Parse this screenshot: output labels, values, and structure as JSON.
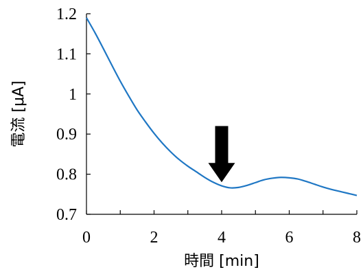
{
  "chart_data": {
    "type": "line",
    "title": "",
    "xlabel": "時間 [min]",
    "ylabel": "電流 [μA]",
    "xlim": [
      0,
      8
    ],
    "ylim": [
      0.7,
      1.2
    ],
    "xticks": [
      0,
      2,
      4,
      6,
      8
    ],
    "xtick_labels": [
      "0",
      "2",
      "4",
      "6",
      "8"
    ],
    "yticks": [
      0.7,
      0.8,
      0.9,
      1.0,
      1.1,
      1.2
    ],
    "ytick_labels": [
      "0.7",
      "0.8",
      "0.9",
      "1",
      "1.1",
      "1.2"
    ],
    "grid": false,
    "legend": "none",
    "series": [
      {
        "color": "#1f77c4",
        "x": [
          0,
          0.25,
          0.5,
          0.75,
          1.0,
          1.25,
          1.5,
          1.75,
          2.0,
          2.25,
          2.5,
          2.75,
          3.0,
          3.25,
          3.5,
          3.75,
          4.0,
          4.25,
          4.5,
          4.75,
          5.0,
          5.25,
          5.5,
          5.75,
          6.0,
          6.25,
          6.5,
          6.75,
          7.0,
          7.25,
          7.5,
          7.75,
          8.0
        ],
        "y": [
          1.19,
          1.153,
          1.113,
          1.072,
          1.032,
          0.995,
          0.96,
          0.93,
          0.902,
          0.877,
          0.855,
          0.836,
          0.82,
          0.806,
          0.792,
          0.78,
          0.771,
          0.766,
          0.767,
          0.772,
          0.779,
          0.786,
          0.79,
          0.792,
          0.791,
          0.788,
          0.782,
          0.775,
          0.768,
          0.762,
          0.757,
          0.752,
          0.747
        ]
      }
    ],
    "annotations": [
      {
        "type": "arrow",
        "direction": "down",
        "x": 4.0,
        "y_top": 0.92,
        "y_tip": 0.78,
        "color": "#000000"
      }
    ]
  }
}
